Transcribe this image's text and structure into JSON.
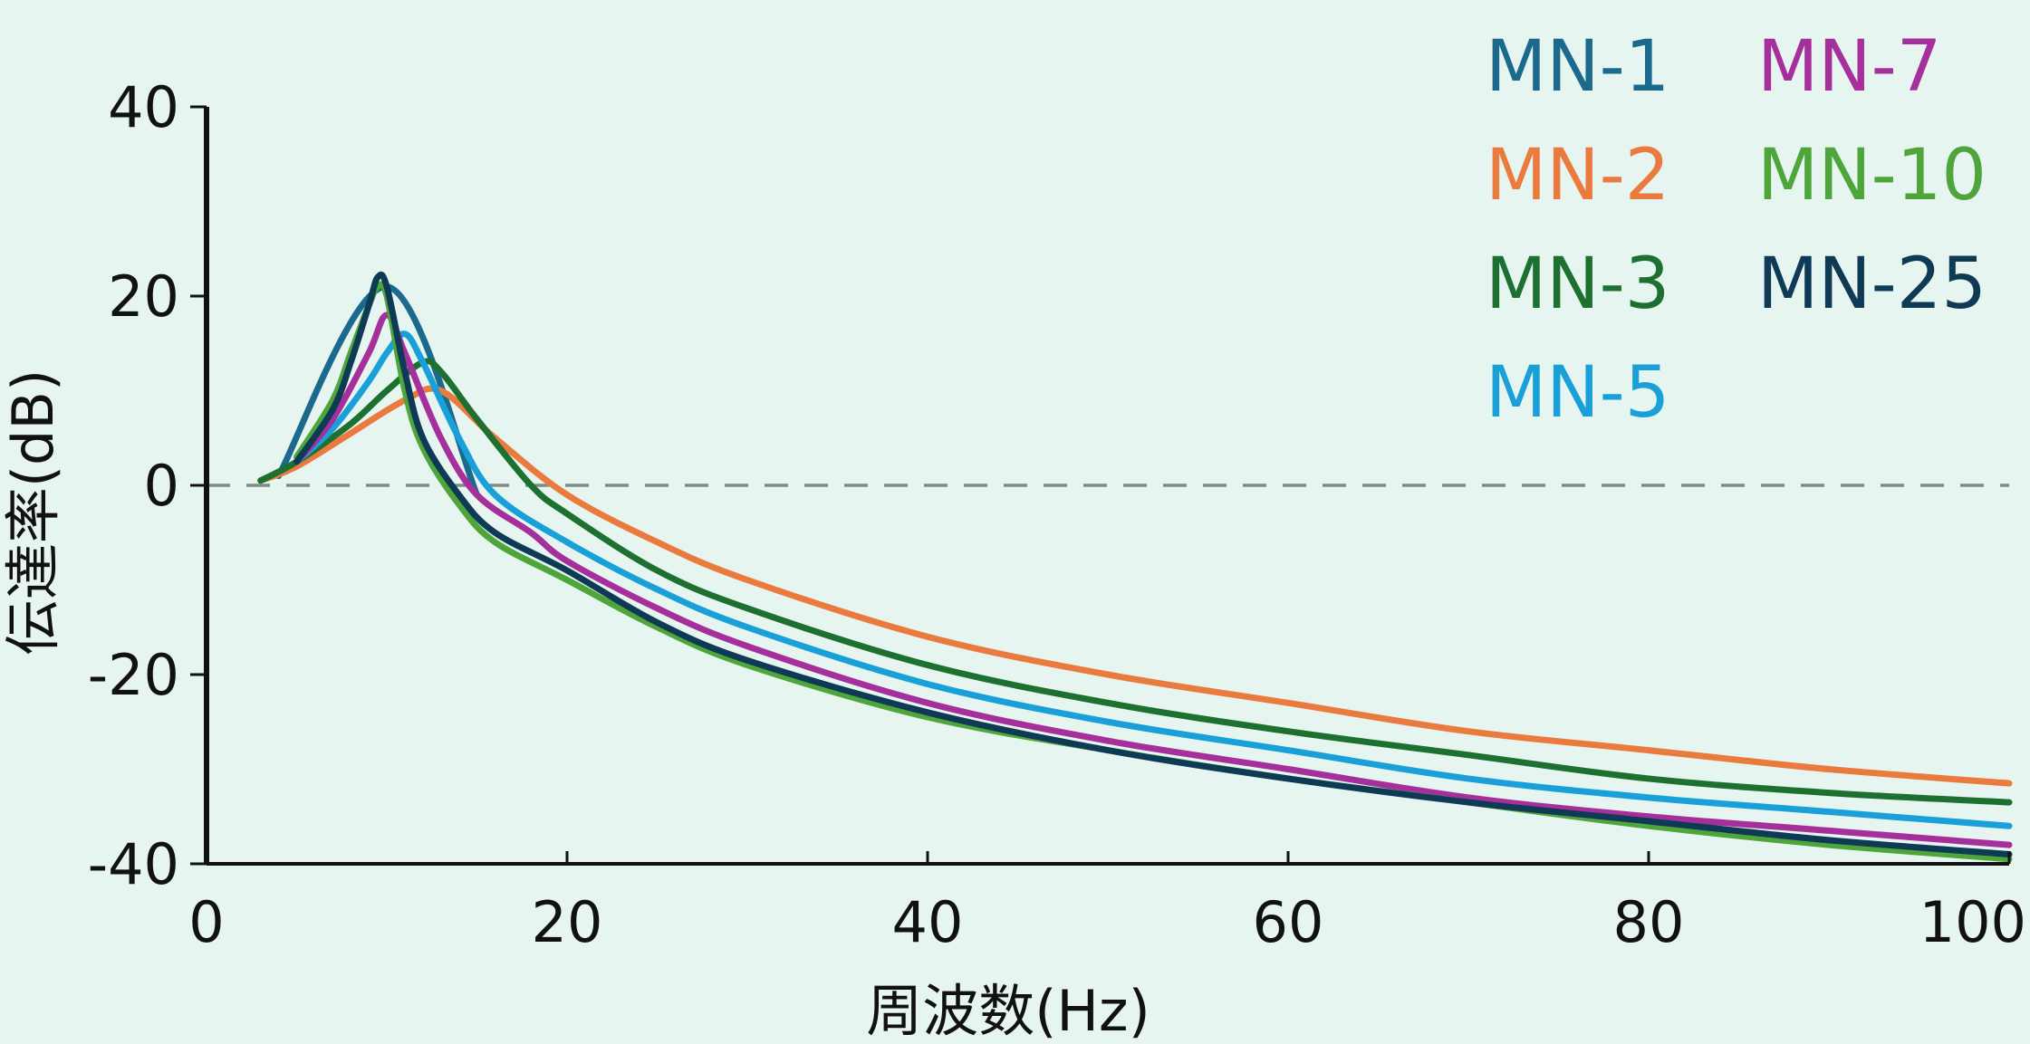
{
  "chart_data": {
    "type": "line",
    "xlabel": "周波数(Hz)",
    "ylabel": "伝達率(dB)",
    "xlim": [
      0,
      100
    ],
    "ylim": [
      -40,
      40
    ],
    "xticks": [
      "0",
      "20",
      "40",
      "60",
      "80",
      "100"
    ],
    "yticks": [
      "40",
      "20",
      "0",
      "-20",
      "-40"
    ],
    "reference_line": {
      "y": 0,
      "style": "dashed",
      "color": "#7f8c8a"
    },
    "grid": false,
    "legend_position": "top-right",
    "series": [
      {
        "name": "MN-1",
        "color": "#1b6a8e",
        "x": [
          4,
          10,
          15
        ],
        "y": [
          1,
          21,
          -1
        ]
      },
      {
        "name": "MN-2",
        "color": "#ea7a3e",
        "x": [
          3,
          5,
          8,
          11,
          13,
          16,
          20,
          25,
          30,
          40,
          50,
          60,
          70,
          80,
          90,
          100
        ],
        "y": [
          0.5,
          2,
          5.5,
          9,
          10,
          5,
          -1,
          -6,
          -10,
          -16,
          -20,
          -23,
          -26,
          -28,
          -30,
          -31.5
        ]
      },
      {
        "name": "MN-3",
        "color": "#1e7031",
        "x": [
          3,
          5,
          8,
          10,
          12,
          13,
          15,
          18,
          20,
          25,
          30,
          40,
          50,
          60,
          70,
          80,
          90,
          100
        ],
        "y": [
          0.5,
          2.5,
          6.5,
          10,
          13,
          12,
          7,
          0,
          -3,
          -9,
          -13,
          -19,
          -23,
          -26,
          -28.5,
          -31,
          -32.5,
          -33.5
        ]
      },
      {
        "name": "MN-5",
        "color": "#1aa0d8",
        "x": [
          5,
          7,
          9,
          10,
          11,
          12,
          14,
          16,
          20,
          25,
          30,
          40,
          50,
          60,
          70,
          80,
          90,
          100
        ],
        "y": [
          2.5,
          6,
          11,
          14,
          16,
          13,
          5,
          -1,
          -6,
          -11,
          -15,
          -21,
          -25,
          -28,
          -31,
          -33,
          -34.5,
          -36
        ]
      },
      {
        "name": "MN-7",
        "color": "#a6309b",
        "x": [
          5,
          7,
          9,
          10,
          11,
          13,
          15,
          18,
          20,
          25,
          30,
          40,
          50,
          60,
          70,
          80,
          90,
          100
        ],
        "y": [
          2.5,
          7,
          14,
          18,
          14,
          5,
          -1,
          -5,
          -8,
          -13,
          -17,
          -23,
          -27,
          -30,
          -33,
          -35,
          -36.5,
          -38
        ]
      },
      {
        "name": "MN-10",
        "color": "#4ea53a",
        "x": [
          5,
          7,
          8,
          9,
          9.5,
          10,
          11,
          12,
          14,
          16,
          20,
          25,
          30,
          40,
          50,
          60,
          70,
          80,
          90,
          100
        ],
        "y": [
          3,
          9,
          14,
          19,
          21,
          20,
          10,
          4,
          -2,
          -6,
          -10,
          -15,
          -19,
          -24.5,
          -28,
          -31,
          -33.5,
          -36,
          -38,
          -39.5
        ]
      },
      {
        "name": "MN-25",
        "color": "#0f3a55",
        "x": [
          5,
          7,
          8,
          9,
          9.5,
          10,
          11,
          12,
          14,
          16,
          20,
          25,
          30,
          40,
          50,
          60,
          70,
          80,
          90,
          100
        ],
        "y": [
          2.5,
          8,
          13,
          19,
          22,
          21,
          12,
          5,
          -1,
          -5,
          -9,
          -14.5,
          -18.5,
          -24,
          -28,
          -31,
          -33.5,
          -35.5,
          -37.5,
          -39
        ]
      }
    ]
  }
}
